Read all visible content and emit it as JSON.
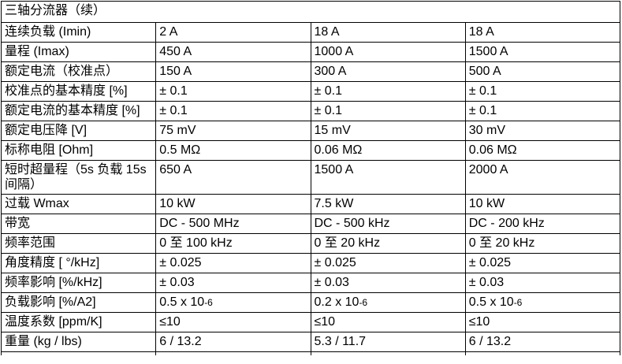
{
  "table": {
    "title": "三轴分流器（续）",
    "rows": [
      {
        "label": "连续负载 (Imin)",
        "values": [
          "2 A",
          "18 A",
          "18 A"
        ]
      },
      {
        "label": "量程 (Imax)",
        "values": [
          "450 A",
          "1000 A",
          "1500 A"
        ]
      },
      {
        "label": "额定电流（校准点）",
        "values": [
          "150 A",
          "300 A",
          "500 A"
        ]
      },
      {
        "label": "校准点的基本精度 [%]",
        "values": [
          "± 0.1",
          "± 0.1",
          "± 0.1"
        ]
      },
      {
        "label": "额定电流的基本精度 [%]",
        "values": [
          "± 0.1",
          "± 0.1",
          "± 0.1"
        ]
      },
      {
        "label": "额定电压降 [V]",
        "values": [
          "75 mV",
          "15 mV",
          "30 mV"
        ]
      },
      {
        "label": "标称电阻 [Ohm]",
        "values": [
          "0.5 MΩ",
          "0.06 MΩ",
          "0.06 MΩ"
        ]
      },
      {
        "label": "短时超量程（5s 负载 15s 间隔）",
        "values": [
          "650 A",
          "1500 A",
          "2000 A"
        ]
      },
      {
        "label": "过载 Wmax",
        "values": [
          "10 kW",
          "7.5 kW",
          "10 kW"
        ]
      },
      {
        "label": "带宽",
        "values": [
          "DC - 500 MHz",
          "DC - 500 kHz",
          "DC - 200 kHz"
        ]
      },
      {
        "label": "频率范围",
        "values": [
          "0 至 100 kHz",
          "0 至 20 kHz",
          "0 至 20 kHz"
        ]
      },
      {
        "label": "角度精度 [ °/kHz]",
        "values": [
          "± 0.025",
          "± 0.025",
          "± 0.025"
        ]
      },
      {
        "label": "频率影响 [%/kHz]",
        "values": [
          "± 0.03",
          "± 0.03",
          "± 0.03"
        ]
      },
      {
        "label": "负载影响 [%/A2]",
        "values": [
          "0.5 x 10-6",
          "0.2 x 10-6",
          "0.5 x 10-6"
        ]
      },
      {
        "label": "温度系数 [ppm/K]",
        "values": [
          "≤10",
          "≤10",
          "≤10"
        ]
      },
      {
        "label": "重量 (kg / lbs)",
        "values": [
          "6 / 13.2",
          "5.3 / 11.7",
          "6 / 13.2"
        ]
      }
    ]
  }
}
